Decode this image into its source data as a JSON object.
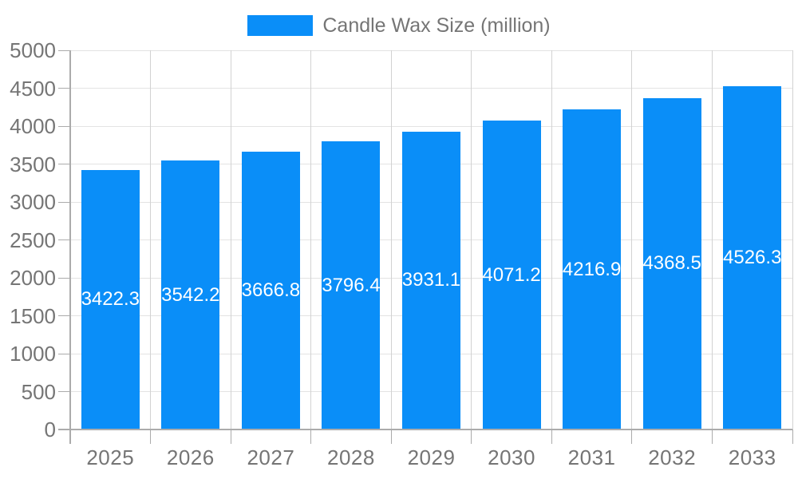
{
  "chart_data": {
    "type": "bar",
    "title": "",
    "legend": {
      "label": "Candle Wax Size (million)",
      "position": "top-center"
    },
    "categories": [
      "2025",
      "2026",
      "2027",
      "2028",
      "2029",
      "2030",
      "2031",
      "2032",
      "2033"
    ],
    "series": [
      {
        "name": "Candle Wax Size (million)",
        "values": [
          3422.3,
          3542.2,
          3666.8,
          3796.4,
          3931.1,
          4071.2,
          4216.9,
          4368.5,
          4526.3
        ]
      }
    ],
    "value_label_decimals": 1,
    "xlabel": "",
    "ylabel": "",
    "ylim": [
      0,
      5000
    ],
    "ytick_interval": 500,
    "grid": true,
    "legend_position": "top",
    "colors": {
      "bar": "#0a8ef8",
      "axis_text": "#757575",
      "legend_text": "#757575",
      "value_label_text": "#ffffff",
      "h_gridline": "#e3e3e3",
      "v_gridline": "#d2d2d2",
      "axis_line": "#ababab",
      "background": "#ffffff"
    }
  }
}
